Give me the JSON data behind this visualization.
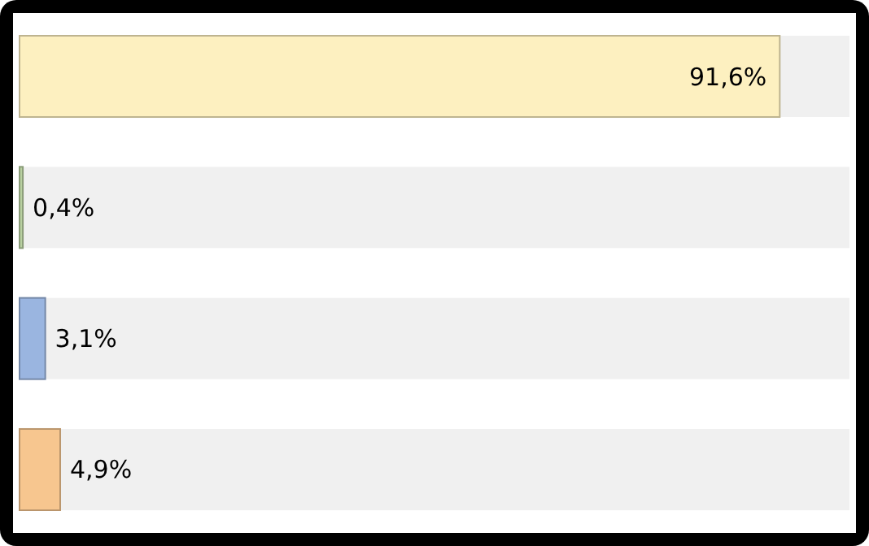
{
  "chart_data": {
    "type": "bar",
    "orientation": "horizontal",
    "categories": [
      null,
      null,
      null,
      null
    ],
    "values": [
      91.6,
      0.4,
      3.1,
      4.9
    ],
    "colors": [
      "#fdf0c0",
      "#b8d0a0",
      "#9ab5e0",
      "#f7c68f"
    ],
    "value_labels": [
      "91,6%",
      "0,4%",
      "3,1%",
      "4,9%"
    ],
    "xlim": [
      0,
      100
    ]
  }
}
